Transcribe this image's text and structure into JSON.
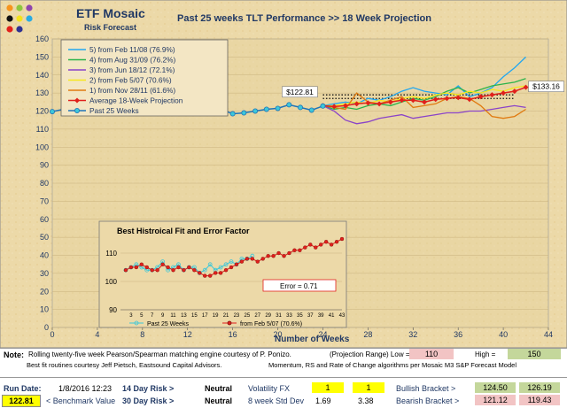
{
  "header": {
    "brand_title": "ETF Mosaic",
    "brand_subtitle": "Risk Forecast",
    "chart_title": "Past 25 weeks TLT  Performance  >> 18 Week Projection"
  },
  "colors": {
    "background": "#ecd9a8",
    "plot_area": "#e8d3a0",
    "past": "#1f74b8",
    "past_marker": "#3cc7d9",
    "avg": "#e0201b",
    "s5": "#22a7f0",
    "s4": "#2bb34a",
    "s3": "#8a43c8",
    "s2": "#f5e71e",
    "s1": "#e07a10"
  },
  "chart_data": [
    {
      "type": "line",
      "title": "Past 25 weeks TLT  Performance  >> 18 Week Projection",
      "xlabel": "Number of Weeks",
      "ylabel": "",
      "xlim": [
        0,
        44
      ],
      "ylim": [
        0,
        160
      ],
      "x_ticks": [
        0,
        4,
        8,
        12,
        16,
        20,
        24,
        28,
        32,
        36,
        40,
        44
      ],
      "y_ticks": [
        0,
        10,
        20,
        30,
        40,
        50,
        60,
        70,
        80,
        90,
        100,
        110,
        120,
        130,
        140,
        150,
        160
      ],
      "legend_position": "top-left",
      "series": [
        {
          "name": "5)  from Feb 11/08 (76.9%)",
          "color_key": "s5",
          "x": [
            24,
            25,
            26,
            27,
            28,
            29,
            30,
            31,
            32,
            33,
            34,
            35,
            36,
            37,
            38,
            39,
            40,
            41,
            42
          ],
          "values": [
            123,
            124,
            125,
            124,
            127,
            126,
            128,
            131,
            133,
            131,
            130,
            129,
            134,
            128,
            130,
            133,
            139,
            144,
            150
          ]
        },
        {
          "name": "4)  from Aug 31/09 (76.2%)",
          "color_key": "s4",
          "x": [
            24,
            25,
            26,
            27,
            28,
            29,
            30,
            31,
            32,
            33,
            34,
            35,
            36,
            37,
            38,
            39,
            40,
            41,
            42
          ],
          "values": [
            123,
            121,
            122,
            121,
            123,
            124,
            123,
            125,
            127,
            126,
            128,
            131,
            133,
            130,
            132,
            134,
            135,
            136,
            138
          ]
        },
        {
          "name": "3)  from Jun 18/12 (72.1%)",
          "color_key": "s3",
          "x": [
            24,
            25,
            26,
            27,
            28,
            29,
            30,
            31,
            32,
            33,
            34,
            35,
            36,
            37,
            38,
            39,
            40,
            41,
            42
          ],
          "values": [
            123,
            120,
            115,
            113,
            114,
            116,
            117,
            118,
            116,
            117,
            118,
            119,
            119,
            120,
            120,
            121,
            122,
            123,
            122
          ]
        },
        {
          "name": "2)  from Feb 5/07 (70.6%)",
          "color_key": "s2",
          "x": [
            24,
            25,
            26,
            27,
            28,
            29,
            30,
            31,
            32,
            33,
            34,
            35,
            36,
            37,
            38,
            39,
            40,
            41,
            42
          ],
          "values": [
            123,
            123,
            124,
            125,
            124,
            126,
            125,
            127,
            128,
            127,
            129,
            130,
            129,
            131,
            130,
            132,
            131,
            133,
            134
          ]
        },
        {
          "name": "1)  from Nov 28/11 (61.6%)",
          "color_key": "s1",
          "x": [
            24,
            25,
            26,
            27,
            28,
            29,
            30,
            31,
            32,
            33,
            34,
            35,
            36,
            37,
            38,
            39,
            40,
            41,
            42
          ],
          "values": [
            123,
            122,
            121,
            130,
            125,
            124,
            126,
            128,
            122,
            123,
            124,
            127,
            128,
            127,
            123,
            117,
            116,
            117,
            121
          ]
        },
        {
          "name": "Average 18-Week Projection",
          "color_key": "avg",
          "x": [
            24,
            25,
            26,
            27,
            28,
            29,
            30,
            31,
            32,
            33,
            34,
            35,
            36,
            37,
            38,
            39,
            40,
            41,
            42
          ],
          "values": [
            123,
            122.5,
            123,
            124,
            124.5,
            124,
            125,
            126,
            126,
            125,
            126.5,
            127,
            127.5,
            126.5,
            128,
            129,
            130,
            131,
            133.16
          ]
        },
        {
          "name": "Past 25 Weeks",
          "color_key": "past",
          "x": [
            0,
            1,
            2,
            3,
            4,
            5,
            6,
            7,
            8,
            9,
            10,
            11,
            12,
            13,
            14,
            15,
            16,
            17,
            18,
            19,
            20,
            21,
            22,
            23,
            24
          ],
          "values": [
            119.7,
            121,
            123,
            122.5,
            125,
            121.5,
            120,
            121.5,
            124,
            121.5,
            121,
            123.5,
            120,
            121,
            122,
            121,
            118.5,
            119,
            120,
            121,
            121.5,
            123.5,
            122,
            120.5,
            122.81
          ]
        }
      ],
      "annotations": [
        {
          "label": "$122.81",
          "x": 24,
          "y": 122.81
        },
        {
          "label": "$133.16",
          "x": 42,
          "y": 133.16
        }
      ],
      "reference_lines": [
        {
          "y": 129,
          "x_start": 24,
          "x_end": 41,
          "style": "dotted"
        },
        {
          "y": 127,
          "x_start": 24,
          "x_end": 41,
          "style": "dotted"
        }
      ]
    },
    {
      "type": "line",
      "title": "Best Histroical Fit and Error Factor",
      "ylabel": "",
      "xlabel": "",
      "xlim": [
        1,
        43
      ],
      "ylim": [
        90,
        115
      ],
      "x_ticks": [
        3,
        5,
        7,
        9,
        11,
        13,
        15,
        17,
        19,
        21,
        23,
        25,
        27,
        29,
        31,
        33,
        35,
        37,
        39,
        41,
        43
      ],
      "y_ticks": [
        90,
        100,
        110
      ],
      "legend_position": "bottom",
      "error_label": "Error = 0.71",
      "series": [
        {
          "name": "Past 25 Weeks",
          "color_key": "past",
          "x": [
            2,
            3,
            4,
            5,
            6,
            7,
            8,
            9,
            10,
            11,
            12,
            13,
            14,
            15,
            16,
            17,
            18,
            19,
            20,
            21,
            22,
            23,
            24,
            25,
            26
          ],
          "values": [
            104,
            105,
            106,
            105,
            104,
            104,
            105,
            107,
            104,
            105,
            106,
            104,
            105,
            105,
            103,
            104,
            106,
            104,
            105,
            106,
            107,
            106,
            108,
            108,
            109
          ]
        },
        {
          "name": "from Feb 5/07 (70.6%)",
          "color_key": "avg",
          "x": [
            2,
            3,
            4,
            5,
            6,
            7,
            8,
            9,
            10,
            11,
            12,
            13,
            14,
            15,
            16,
            17,
            18,
            19,
            20,
            21,
            22,
            23,
            24,
            25,
            26,
            27,
            28,
            29,
            30,
            31,
            32,
            33,
            34,
            35,
            36,
            37,
            38,
            39,
            40,
            41,
            42,
            43
          ],
          "values": [
            104,
            105,
            105,
            106,
            105,
            104,
            104,
            106,
            105,
            104,
            105,
            104,
            105,
            104,
            103,
            102,
            102,
            103,
            103,
            104,
            105,
            106,
            107,
            108,
            108,
            107,
            108,
            109,
            109,
            110,
            109,
            110,
            111,
            111,
            112,
            113,
            112,
            113,
            114,
            113,
            114,
            115
          ]
        }
      ]
    }
  ],
  "footer": {
    "note_label": "Note:",
    "note_text": "Rolling twenty-five week Pearson/Spearman matching engine courtesy of P. Ponizo.",
    "projection_range_label": "(Projection Range) Low =",
    "low_value": "110",
    "high_label": "High =",
    "high_value": "150",
    "credit_text": "Best fit routines courtesy Jeff Pietsch, Eastsound Capital Advisors.",
    "credit_text_2": "Momentum, RS and Rate of Change algorithms per Mosaic M3 S&P Forecast Model",
    "run_date_label": "Run Date:",
    "run_date_value": "1/8/2016 12:23",
    "risk14_label": "14 Day Risk >",
    "risk14_value": "Neutral",
    "volfx_label": "Volatility FX",
    "volfx_a": "1",
    "volfx_b": "1",
    "bullish_label": "Bullish Bracket >",
    "bullish_low": "124.50",
    "bullish_high": "126.19",
    "benchmark_value": "122.81",
    "benchmark_label": "< Benchmark Value",
    "risk30_label": "30 Day Risk >",
    "risk30_value": "Neutral",
    "std_label": "8 week Std Dev",
    "std_a": "1.69",
    "std_b": "3.38",
    "bearish_label": "Bearish Bracket >",
    "bearish_low": "121.12",
    "bearish_high": "119.43"
  }
}
